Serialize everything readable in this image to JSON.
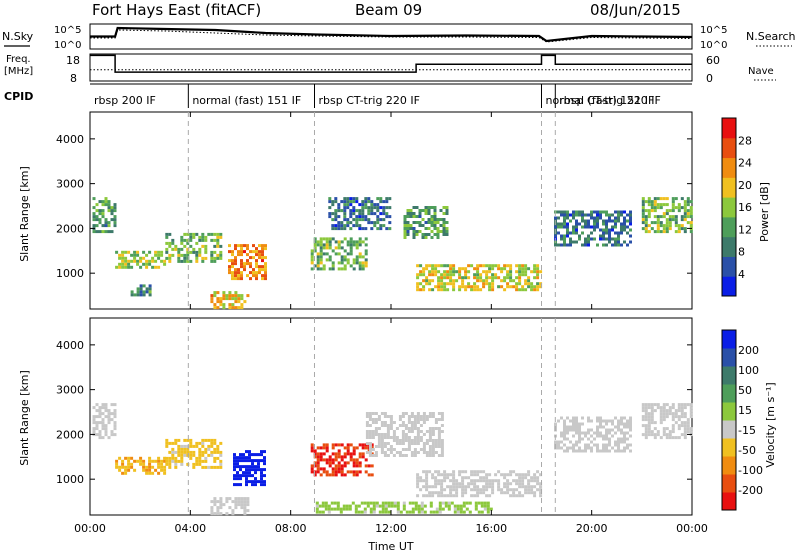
{
  "header": {
    "radar": "Fort Hays East (fitACF)",
    "beam": "Beam 09",
    "date": "08/Jun/2015"
  },
  "top_panel_labels": {
    "nsky": "N.Sky",
    "nsky_ticks": [
      "10^5",
      "10^0"
    ],
    "nsearch": "N.Search",
    "nsearch_ticks": [
      "10^5",
      "10^0"
    ],
    "freq": "Freq.",
    "freq_unit": "[MHz]",
    "freq_ticks": [
      "18",
      "8"
    ],
    "nave": "Nave",
    "nave_ticks": [
      "60",
      "0"
    ],
    "cpid": "CPID"
  },
  "cpid_segments": [
    {
      "label": "rbsp 200 IF",
      "start": 0.0,
      "end": 3.92
    },
    {
      "label": "normal (fast) 151 IF",
      "start": 3.92,
      "end": 8.95
    },
    {
      "label": "rbsp CT-trig 220 IF",
      "start": 8.95,
      "end": 18.0
    },
    {
      "label": "normal (fast) 151 IF",
      "start": 18.0,
      "end": 18.55
    },
    {
      "label": "rbsp CT-trig 220 IF",
      "start": 18.55,
      "end": 24.0
    }
  ],
  "colors": {
    "power_scale": [
      "#0a1ee6",
      "#2a50a8",
      "#3d7a6a",
      "#4e9e5a",
      "#8cc83c",
      "#f0c020",
      "#f08c10",
      "#e84e10",
      "#e81010"
    ],
    "velocity_scale": [
      "#0a1ee6",
      "#2a50a8",
      "#3d7a6a",
      "#4e9e5a",
      "#8cc83c",
      "#c8c8c8",
      "#f0c020",
      "#f08c10",
      "#e84e10",
      "#e81010"
    ],
    "ground_scatter": "#c8c8c8"
  },
  "chart_data": [
    {
      "type": "line",
      "panel": "N.Sky / N.Search",
      "title": "",
      "x": [
        0.0,
        1.0,
        1.1,
        3.0,
        5.0,
        7.0,
        9.0,
        12.0,
        15.0,
        17.9,
        18.2,
        20.0,
        22.0,
        24.0
      ],
      "series": [
        {
          "name": "N.Sky",
          "values": [
            2.5,
            2.5,
            4.2,
            4.0,
            3.8,
            3.2,
            2.9,
            2.6,
            2.7,
            2.6,
            1.6,
            2.6,
            2.5,
            2.4
          ]
        },
        {
          "name": "N.Search",
          "values": [
            2.2,
            2.2,
            3.8,
            3.6,
            3.2,
            2.8,
            2.6,
            2.4,
            2.4,
            2.3,
            1.4,
            2.3,
            2.2,
            2.1
          ]
        }
      ],
      "ylim": [
        0,
        5
      ],
      "yscale": "log"
    },
    {
      "type": "line",
      "panel": "Freq / Nave",
      "title": "",
      "x": [
        0.0,
        1.0,
        1.0,
        13.0,
        13.0,
        18.0,
        18.0,
        18.55,
        18.55,
        24.0
      ],
      "series": [
        {
          "name": "Freq.",
          "values": [
            17.5,
            17.5,
            11.3,
            11.3,
            14.2,
            14.2,
            17.5,
            17.5,
            14.2,
            14.2
          ]
        },
        {
          "name": "Nave",
          "values": [
            25,
            25,
            25,
            25,
            25,
            25,
            25,
            25,
            25,
            25
          ]
        }
      ],
      "ylim": [
        8,
        18
      ],
      "y2lim": [
        0,
        60
      ]
    },
    {
      "type": "heatmap",
      "panel": "Power",
      "xlabel": "",
      "ylabel": "Slant Range [km]",
      "xlim": [
        0,
        24
      ],
      "ylim": [
        200,
        4600
      ],
      "yticks": [
        1000,
        2000,
        3000,
        4000
      ],
      "colorbar": {
        "label": "Power [dB]",
        "ticks": [
          4,
          8,
          12,
          16,
          20,
          24,
          28
        ],
        "range": [
          0,
          32
        ]
      },
      "regions": [
        {
          "t0": 0.1,
          "t1": 1.0,
          "r0": 1900,
          "r1": 2700,
          "value": 12
        },
        {
          "t0": 1.0,
          "t1": 3.0,
          "r0": 1100,
          "r1": 1500,
          "value": 16
        },
        {
          "t0": 3.0,
          "t1": 5.2,
          "r0": 1250,
          "r1": 1900,
          "value": 14
        },
        {
          "t0": 5.5,
          "t1": 7.0,
          "r0": 900,
          "r1": 1650,
          "value": 24
        },
        {
          "t0": 4.8,
          "t1": 6.3,
          "r0": 250,
          "r1": 600,
          "value": 20
        },
        {
          "t0": 8.8,
          "t1": 11.0,
          "r0": 1100,
          "r1": 1800,
          "value": 14
        },
        {
          "t0": 9.5,
          "t1": 12.0,
          "r0": 2000,
          "r1": 2700,
          "value": 8
        },
        {
          "t0": 12.5,
          "t1": 14.2,
          "r0": 1800,
          "r1": 2500,
          "value": 12
        },
        {
          "t0": 13.0,
          "t1": 18.0,
          "r0": 650,
          "r1": 1200,
          "value": 18
        },
        {
          "t0": 18.5,
          "t1": 21.5,
          "r0": 1600,
          "r1": 2400,
          "value": 8
        },
        {
          "t0": 22.0,
          "t1": 24.0,
          "r0": 1900,
          "r1": 2700,
          "value": 14
        },
        {
          "t0": 1.5,
          "t1": 2.4,
          "r0": 500,
          "r1": 750,
          "value": 10
        }
      ]
    },
    {
      "type": "heatmap",
      "panel": "Velocity",
      "xlabel": "Time UT",
      "ylabel": "Slant Range [km]",
      "xlim": [
        0,
        24
      ],
      "ylim": [
        200,
        4600
      ],
      "xticks": [
        "00:00",
        "04:00",
        "08:00",
        "12:00",
        "16:00",
        "20:00",
        "00:00"
      ],
      "yticks": [
        1000,
        2000,
        3000,
        4000
      ],
      "colorbar": {
        "label": "Velocity [m s⁻¹]",
        "ticks": [
          "200",
          "100",
          "50",
          "15",
          "-15",
          "-50",
          "-100",
          "-200"
        ],
        "range": [
          -250,
          250
        ]
      },
      "regions": [
        {
          "t0": 0.1,
          "t1": 1.0,
          "r0": 1900,
          "r1": 2700,
          "value": 0,
          "ground": true
        },
        {
          "t0": 1.0,
          "t1": 3.0,
          "r0": 1100,
          "r1": 1500,
          "value": -40
        },
        {
          "t0": 3.0,
          "t1": 5.2,
          "r0": 1250,
          "r1": 1900,
          "value": -30
        },
        {
          "t0": 5.7,
          "t1": 7.0,
          "r0": 900,
          "r1": 1650,
          "value": 220
        },
        {
          "t0": 4.8,
          "t1": 6.3,
          "r0": 250,
          "r1": 600,
          "value": 0,
          "ground": true
        },
        {
          "t0": 8.8,
          "t1": 11.2,
          "r0": 1100,
          "r1": 1800,
          "value": -200
        },
        {
          "t0": 11.0,
          "t1": 14.0,
          "r0": 1500,
          "r1": 2500,
          "value": 0,
          "ground": true
        },
        {
          "t0": 13.0,
          "t1": 18.0,
          "r0": 650,
          "r1": 1200,
          "value": 0,
          "ground": true
        },
        {
          "t0": 18.5,
          "t1": 21.5,
          "r0": 1600,
          "r1": 2400,
          "value": 0,
          "ground": true
        },
        {
          "t0": 22.0,
          "t1": 24.0,
          "r0": 1900,
          "r1": 2700,
          "value": 0,
          "ground": true
        },
        {
          "t0": 9.0,
          "t1": 16.0,
          "r0": 250,
          "r1": 500,
          "value": 30
        }
      ]
    }
  ]
}
